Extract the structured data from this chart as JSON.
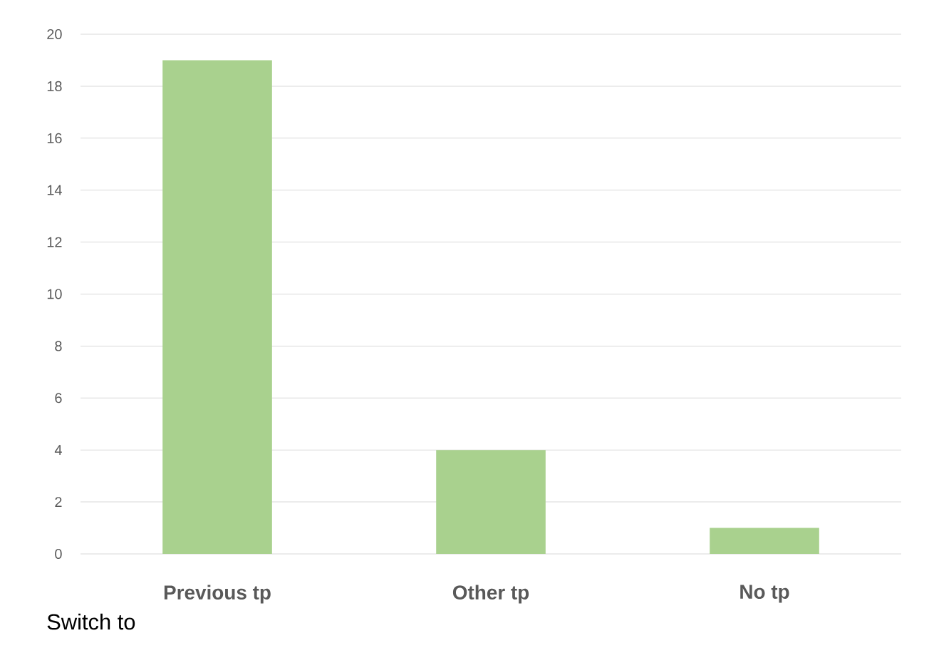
{
  "chart_data": {
    "type": "bar",
    "categories": [
      "Previous tp",
      "Other tp",
      "No tp"
    ],
    "values": [
      19,
      4,
      1
    ],
    "color": "#a9d18e",
    "ylim": [
      0,
      20
    ],
    "yticks": [
      0,
      2,
      4,
      6,
      8,
      10,
      12,
      14,
      16,
      18,
      20
    ],
    "grid": "y",
    "annotations": [
      "Switch to"
    ]
  }
}
